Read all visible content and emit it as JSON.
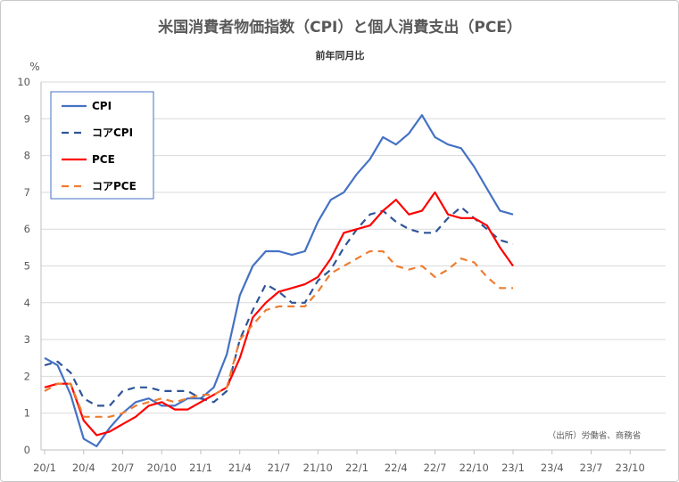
{
  "chart_data": {
    "type": "line",
    "title": "米国消費者物価指数（CPI）と個人消費支出（PCE）",
    "subtitle": "前年同月比",
    "ylabel": "%",
    "ylim": [
      0,
      10
    ],
    "yticks": [
      "0",
      "1",
      "2",
      "3",
      "4",
      "5",
      "6",
      "7",
      "8",
      "9",
      "10"
    ],
    "x_tick_labels": [
      "20/1",
      "20/4",
      "20/7",
      "20/10",
      "21/1",
      "21/4",
      "21/7",
      "21/10",
      "22/1",
      "22/4",
      "22/7",
      "22/10",
      "23/1",
      "23/4",
      "23/7",
      "23/10"
    ],
    "x_months": [
      "20/1",
      "20/2",
      "20/3",
      "20/4",
      "20/5",
      "20/6",
      "20/7",
      "20/8",
      "20/9",
      "20/10",
      "20/11",
      "20/12",
      "21/1",
      "21/2",
      "21/3",
      "21/4",
      "21/5",
      "21/6",
      "21/7",
      "21/8",
      "21/9",
      "21/10",
      "21/11",
      "21/12",
      "22/1",
      "22/2",
      "22/3",
      "22/4",
      "22/5",
      "22/6",
      "22/7",
      "22/8",
      "22/9",
      "22/10",
      "22/11",
      "22/12",
      "23/1",
      "23/2",
      "23/3",
      "23/4",
      "23/5",
      "23/6",
      "23/7",
      "23/8",
      "23/9",
      "23/10",
      "23/11",
      "23/12"
    ],
    "grid": "horizontal",
    "legend_position": "top-left",
    "source_note": "（出所）労働省、商務省",
    "series": [
      {
        "name": "CPI",
        "color": "#4472C4",
        "dash": "solid",
        "values": [
          2.5,
          2.3,
          1.5,
          0.3,
          0.1,
          0.6,
          1.0,
          1.3,
          1.4,
          1.2,
          1.2,
          1.4,
          1.4,
          1.7,
          2.6,
          4.2,
          5.0,
          5.4,
          5.4,
          5.3,
          5.4,
          6.2,
          6.8,
          7.0,
          7.5,
          7.9,
          8.5,
          8.3,
          8.6,
          9.1,
          8.5,
          8.3,
          8.2,
          7.7,
          7.1,
          6.5,
          6.4
        ]
      },
      {
        "name": "コアCPI",
        "color": "#2F5597",
        "dash": "dashed",
        "values": [
          2.3,
          2.4,
          2.1,
          1.4,
          1.2,
          1.2,
          1.6,
          1.7,
          1.7,
          1.6,
          1.6,
          1.6,
          1.4,
          1.3,
          1.6,
          3.0,
          3.8,
          4.5,
          4.3,
          4.0,
          4.0,
          4.6,
          4.9,
          5.5,
          6.0,
          6.4,
          6.5,
          6.2,
          6.0,
          5.9,
          5.9,
          6.3,
          6.6,
          6.3,
          6.0,
          5.7,
          5.6
        ]
      },
      {
        "name": "PCE",
        "color": "#FF0000",
        "dash": "solid",
        "values": [
          1.7,
          1.8,
          1.8,
          0.8,
          0.4,
          0.5,
          0.7,
          0.9,
          1.2,
          1.3,
          1.1,
          1.1,
          1.3,
          1.5,
          1.7,
          2.5,
          3.6,
          4.0,
          4.3,
          4.4,
          4.5,
          4.7,
          5.2,
          5.9,
          6.0,
          6.1,
          6.5,
          6.8,
          6.4,
          6.5,
          7.0,
          6.4,
          6.3,
          6.3,
          6.1,
          5.5,
          5.0
        ]
      },
      {
        "name": "コアPCE",
        "color": "#ED7D31",
        "dash": "dashed",
        "values": [
          1.6,
          1.8,
          1.8,
          0.9,
          0.9,
          0.9,
          1.0,
          1.2,
          1.3,
          1.4,
          1.3,
          1.4,
          1.5,
          1.5,
          1.7,
          3.0,
          3.4,
          3.8,
          3.9,
          3.9,
          3.9,
          4.3,
          4.8,
          5.0,
          5.2,
          5.4,
          5.4,
          5.0,
          4.9,
          5.0,
          4.7,
          4.9,
          5.2,
          5.1,
          4.7,
          4.4,
          4.4
        ]
      }
    ]
  }
}
